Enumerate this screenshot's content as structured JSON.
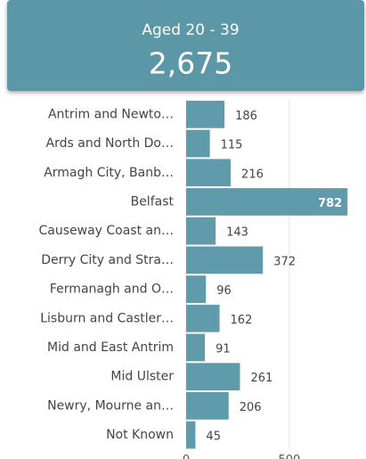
{
  "card": {
    "label": "Aged 20 - 39",
    "value": "2,675"
  },
  "chart_data": {
    "type": "bar",
    "orientation": "horizontal",
    "categories": [
      "Antrim and Newto…",
      "Ards and North Do…",
      "Armagh City, Banb…",
      "Belfast",
      "Causeway Coast an…",
      "Derry City and Stra…",
      "Fermanagh and O…",
      "Lisburn and Castler…",
      "Mid and East Antrim",
      "Mid Ulster",
      "Newry, Mourne an…",
      "Not Known"
    ],
    "values": [
      186,
      115,
      216,
      782,
      143,
      372,
      96,
      162,
      91,
      261,
      206,
      45
    ],
    "color": "#5f9bab",
    "xlim": [
      0,
      850
    ],
    "xticks": [
      0,
      500
    ],
    "grid": true
  }
}
